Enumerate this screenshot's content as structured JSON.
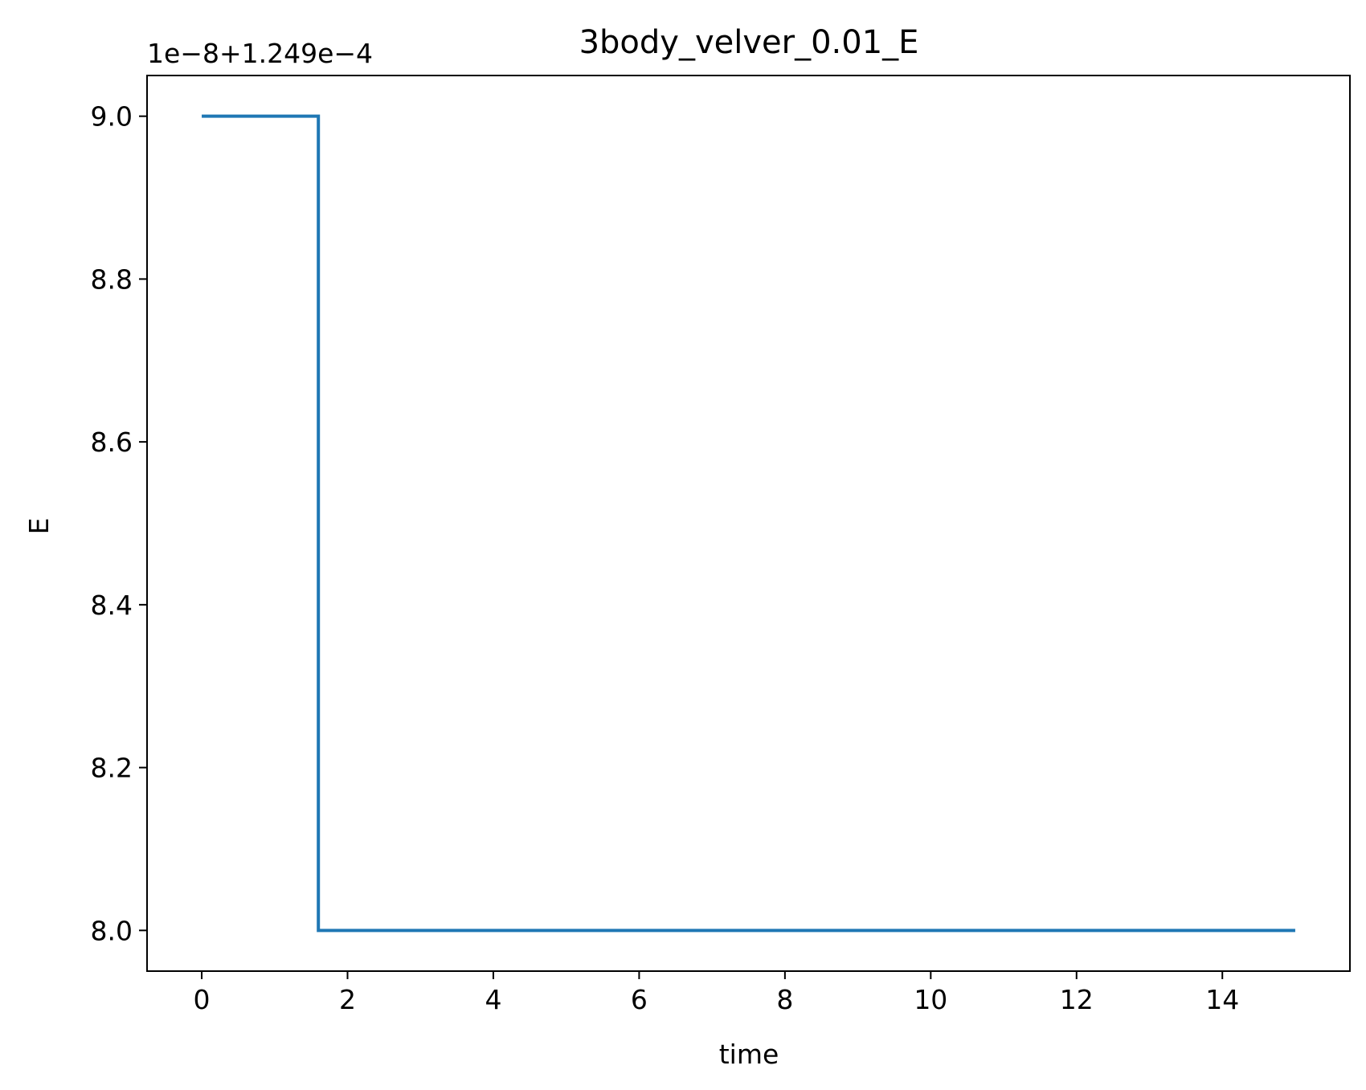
{
  "chart_data": {
    "type": "line",
    "title": "3body_velver_0.01_E",
    "xlabel": "time",
    "ylabel": "E",
    "y_offset_label": "1e−8+1.249e−4",
    "xlim": [
      -0.75,
      15.75
    ],
    "ylim": [
      7.95,
      9.05
    ],
    "x_ticks": [
      0,
      2,
      4,
      6,
      8,
      10,
      12,
      14
    ],
    "x_tick_labels": [
      "0",
      "2",
      "4",
      "6",
      "8",
      "10",
      "12",
      "14"
    ],
    "y_ticks": [
      8.0,
      8.2,
      8.4,
      8.6,
      8.8,
      9.0
    ],
    "y_tick_labels": [
      "8.0",
      "8.2",
      "8.4",
      "8.6",
      "8.8",
      "9.0"
    ],
    "grid": false,
    "series": [
      {
        "color": "#1f77b4",
        "x": [
          0,
          1.6,
          1.6,
          15
        ],
        "y": [
          9.0,
          9.0,
          8.0,
          8.0
        ]
      }
    ]
  }
}
